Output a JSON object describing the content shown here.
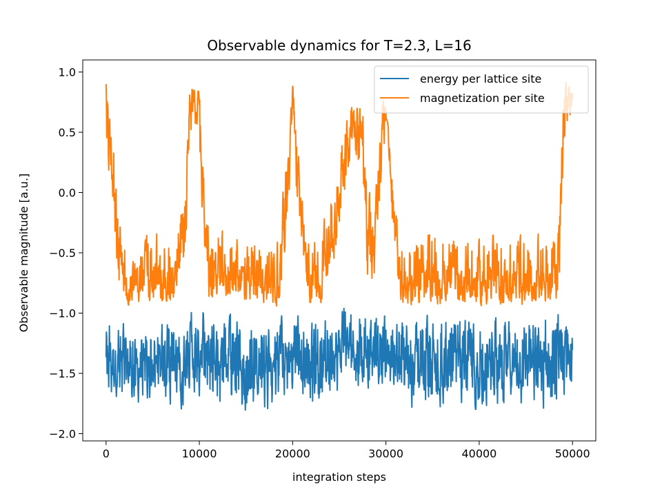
{
  "chart_data": {
    "type": "line",
    "title": "Observable dynamics for T=2.3, L=16",
    "xlabel": "integration steps",
    "ylabel": "Observable magnitude [a.u.]",
    "xlim": [
      -2500,
      52500
    ],
    "ylim": [
      -2.06,
      1.1
    ],
    "xticks": [
      0,
      10000,
      20000,
      30000,
      40000,
      50000
    ],
    "xtick_labels": [
      "0",
      "10000",
      "20000",
      "30000",
      "40000",
      "50000"
    ],
    "yticks": [
      -2.0,
      -1.5,
      -1.0,
      -0.5,
      0.0,
      0.5,
      1.0
    ],
    "ytick_labels": [
      "−2.0",
      "−1.5",
      "−1.0",
      "−0.5",
      "0.0",
      "0.5",
      "1.0"
    ],
    "grid": false,
    "legend_position": "top-right",
    "series": [
      {
        "name": "energy per lattice site",
        "color": "#1f77b4",
        "x": [
          0,
          1000,
          2500,
          5000,
          7500,
          10000,
          12500,
          15000,
          17500,
          20000,
          22500,
          25000,
          27500,
          30000,
          32500,
          35000,
          37500,
          40000,
          42500,
          45000,
          47500,
          50000
        ],
        "mean": [
          -1.3,
          -1.45,
          -1.45,
          -1.45,
          -1.4,
          -1.3,
          -1.42,
          -1.45,
          -1.47,
          -1.33,
          -1.42,
          -1.3,
          -1.25,
          -1.3,
          -1.45,
          -1.45,
          -1.45,
          -1.45,
          -1.43,
          -1.43,
          -1.4,
          -1.35
        ],
        "min": [
          -1.7,
          -1.8,
          -1.82,
          -1.8,
          -1.85,
          -1.75,
          -1.9,
          -1.88,
          -1.9,
          -1.7,
          -1.85,
          -1.75,
          -1.65,
          -1.7,
          -1.85,
          -1.85,
          -1.8,
          -1.85,
          -1.85,
          -1.85,
          -1.9,
          -1.75
        ],
        "max": [
          -0.95,
          -1.0,
          -1.05,
          -1.05,
          -1.0,
          -0.85,
          -1.0,
          -0.95,
          -1.05,
          -0.95,
          -1.0,
          -0.9,
          -0.85,
          -0.95,
          -1.0,
          -0.95,
          -0.95,
          -1.0,
          -0.95,
          -1.0,
          -0.88,
          -1.0
        ]
      },
      {
        "name": "magnetization per site",
        "color": "#ff7f0e",
        "x": [
          0,
          400,
          800,
          1200,
          2000,
          4000,
          6000,
          7500,
          8500,
          9000,
          9500,
          10000,
          10500,
          11000,
          13000,
          15000,
          17000,
          18500,
          19500,
          20000,
          20500,
          21500,
          23000,
          24500,
          25500,
          26500,
          27500,
          28000,
          28700,
          29500,
          30000,
          30500,
          31500,
          33000,
          35000,
          37000,
          39000,
          41000,
          43000,
          45000,
          47000,
          48500,
          49000,
          49500,
          50000
        ],
        "mean": [
          0.85,
          0.45,
          0.05,
          -0.5,
          -0.75,
          -0.72,
          -0.7,
          -0.72,
          -0.2,
          0.65,
          0.8,
          0.6,
          -0.1,
          -0.65,
          -0.68,
          -0.7,
          -0.72,
          -0.75,
          0.1,
          0.85,
          0.1,
          -0.7,
          -0.72,
          -0.3,
          0.3,
          0.65,
          0.45,
          -0.2,
          -0.5,
          0.4,
          0.75,
          0.0,
          -0.75,
          -0.78,
          -0.72,
          -0.75,
          -0.75,
          -0.75,
          -0.72,
          -0.75,
          -0.75,
          -0.7,
          0.5,
          0.8,
          0.7
        ],
        "min": [
          0.3,
          0.0,
          -0.2,
          -0.9,
          -0.95,
          -0.95,
          -0.95,
          -0.95,
          -0.6,
          0.4,
          0.5,
          0.2,
          -0.5,
          -0.95,
          -0.95,
          -0.95,
          -0.95,
          -0.97,
          -0.3,
          0.6,
          -0.3,
          -0.95,
          -0.95,
          -0.6,
          -0.1,
          0.35,
          0.0,
          -0.75,
          -0.9,
          0.0,
          0.45,
          -0.3,
          -0.95,
          -0.95,
          -0.95,
          -0.95,
          -0.95,
          -0.95,
          -0.95,
          -0.95,
          -0.95,
          -0.95,
          0.1,
          0.55,
          0.5
        ],
        "max": [
          0.92,
          0.65,
          0.5,
          -0.1,
          -0.35,
          -0.35,
          -0.25,
          -0.35,
          0.3,
          0.95,
          0.92,
          0.85,
          0.3,
          -0.25,
          -0.25,
          -0.35,
          -0.35,
          -0.3,
          0.5,
          0.92,
          0.5,
          -0.35,
          -0.3,
          0.2,
          0.6,
          0.9,
          0.8,
          0.2,
          -0.2,
          0.8,
          0.92,
          0.3,
          -0.35,
          -0.35,
          -0.25,
          -0.3,
          -0.35,
          -0.3,
          -0.3,
          -0.3,
          -0.3,
          -0.25,
          0.9,
          0.95,
          0.85
        ]
      }
    ]
  }
}
